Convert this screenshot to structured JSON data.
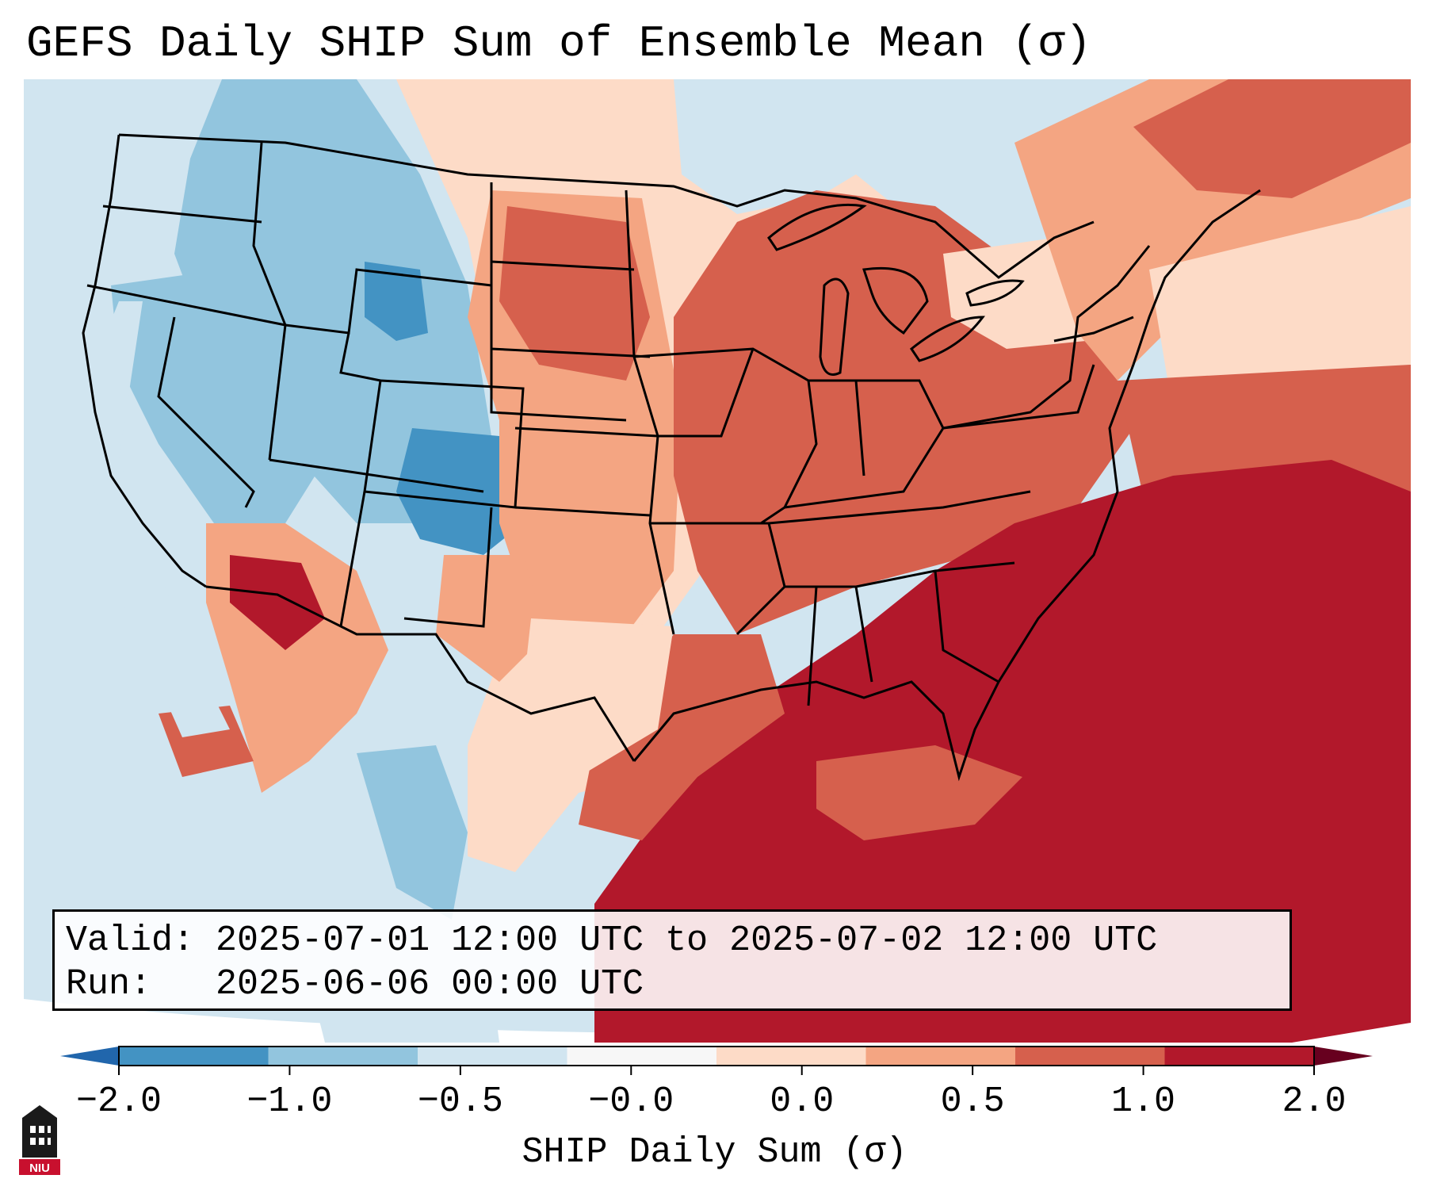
{
  "title": "GEFS Daily SHIP Sum of Ensemble Mean (σ)",
  "info": {
    "valid_label": "Valid:",
    "valid_value": "2025-07-01 12:00 UTC to 2025-07-02 12:00 UTC",
    "run_label": "Run:",
    "run_value": "2025-06-06 00:00 UTC"
  },
  "colorbar": {
    "label": "SHIP Daily Sum (σ)",
    "tick_labels": [
      "−2.0",
      "−1.0",
      "−0.5",
      "−0.0",
      "0.0",
      "0.5",
      "1.0",
      "2.0"
    ],
    "colors": [
      "#4393c3",
      "#92c5de",
      "#d1e5f0",
      "#f7f7f7",
      "#fddbc7",
      "#f4a582",
      "#d6604d",
      "#b2182b"
    ],
    "under_color": "#2166ac",
    "over_color": "#67001f"
  },
  "logo_text": "NIU",
  "map": {
    "region": "Contiguous United States",
    "ocean_color": "#d1e5f0",
    "pattern": "negative anomalies over the West and Rockies, positive anomalies over the Plains, Midwest, Southeast, Gulf of Mexico and western Atlantic"
  }
}
